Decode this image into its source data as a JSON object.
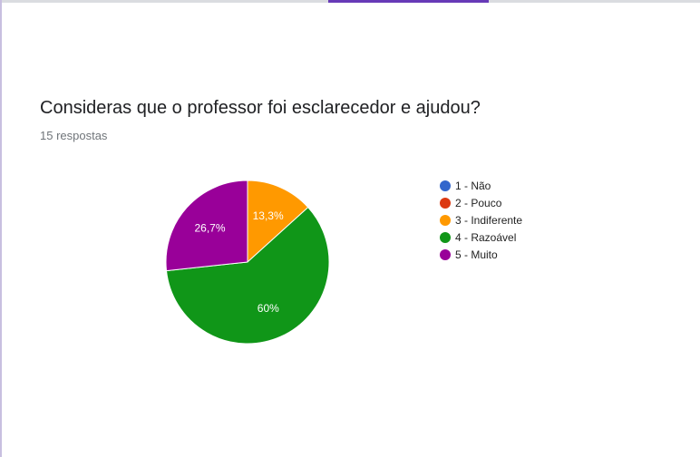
{
  "question": {
    "title": "Consideras que o professor foi esclarecedor e ajudou?",
    "response_count": "15 respostas"
  },
  "theme": {
    "tab_accent": "#673ab7"
  },
  "chart_data": {
    "type": "pie",
    "categories": [
      "1 - Não",
      "2 - Pouco",
      "3 - Indiferente",
      "4 - Razoável",
      "5 - Muito"
    ],
    "values": [
      0,
      0,
      13.3,
      60,
      26.7
    ],
    "data_labels": [
      "",
      "",
      "13,3%",
      "60%",
      "26,7%"
    ],
    "colors": [
      "#3366cc",
      "#dc3912",
      "#ff9900",
      "#109618",
      "#990099"
    ],
    "legend_position": "right"
  }
}
